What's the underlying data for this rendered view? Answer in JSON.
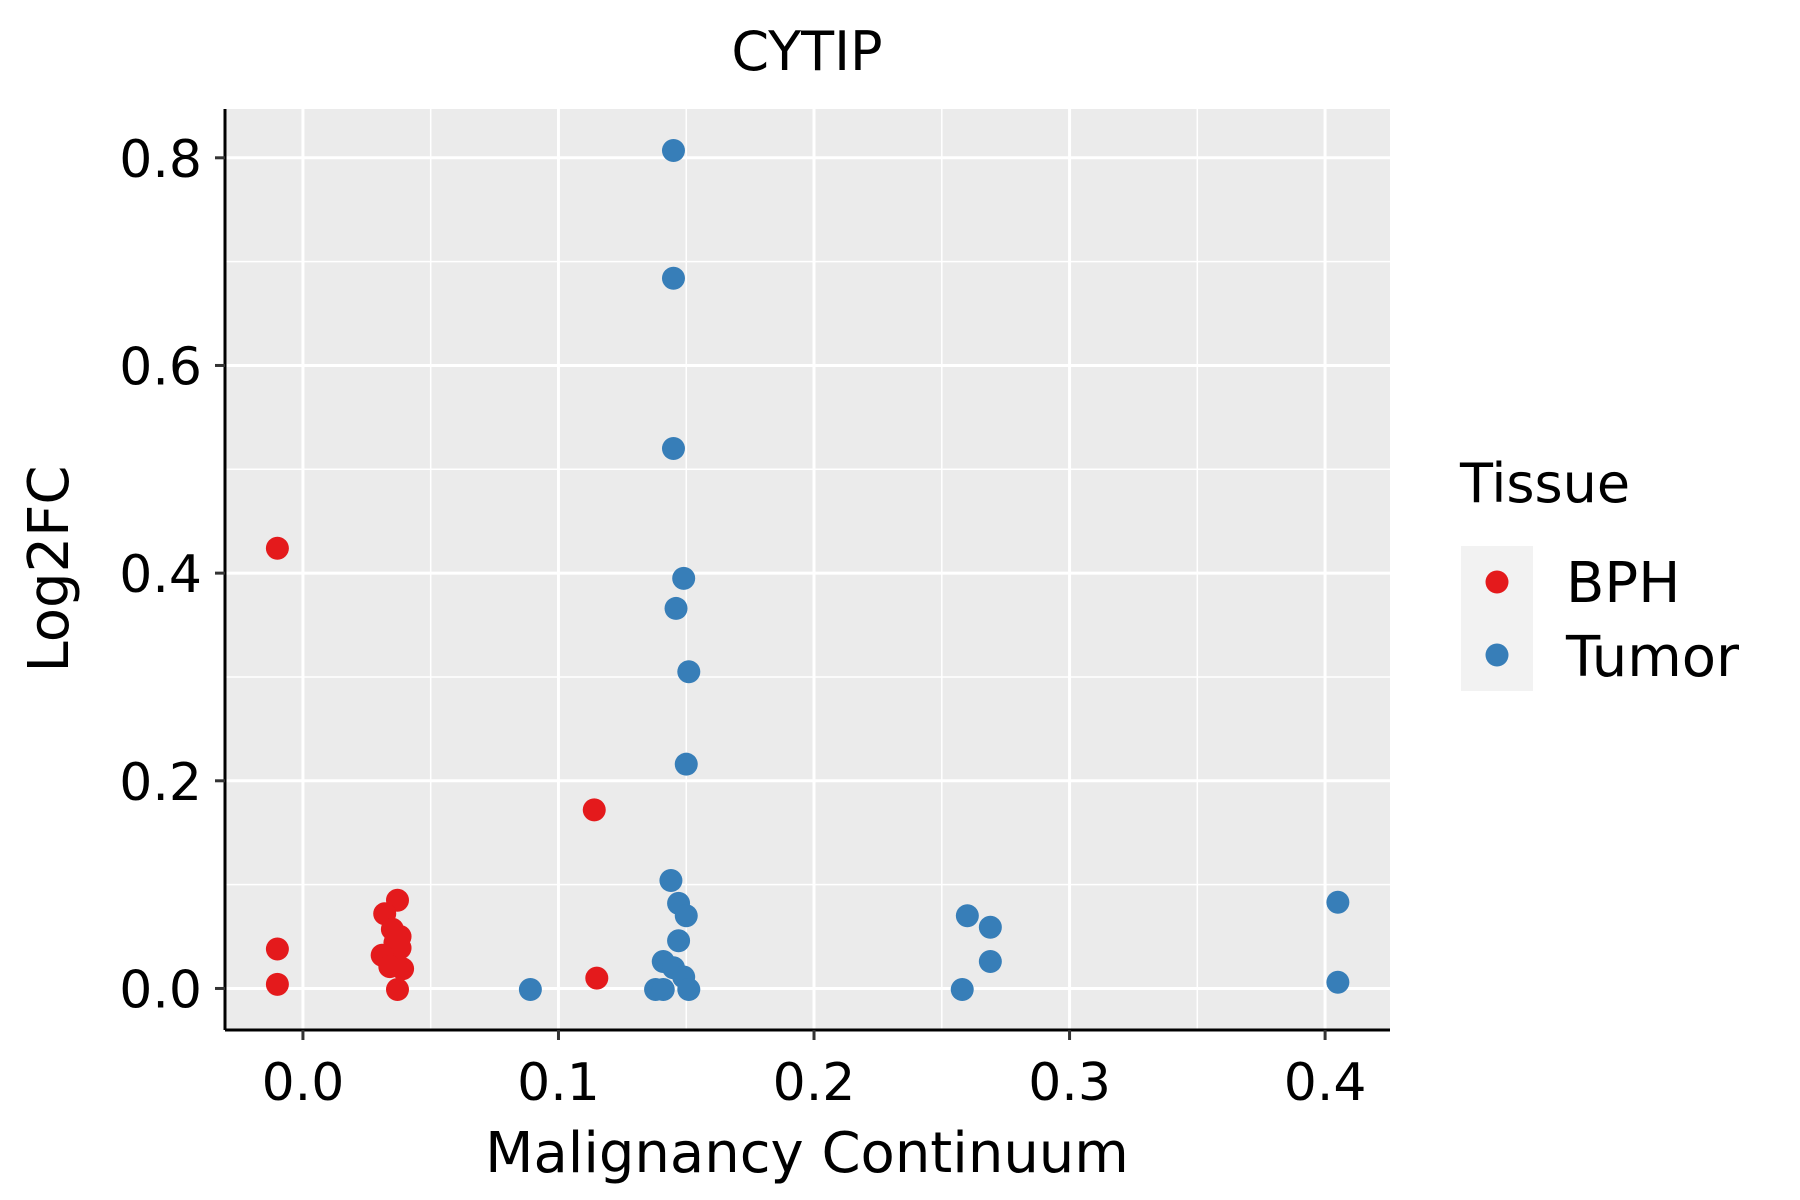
{
  "chart_data": {
    "type": "scatter",
    "title": "CYTIP",
    "xlabel": "Malignancy Continuum",
    "ylabel": "Log2FC",
    "xlim": [
      -0.0305,
      0.4254
    ],
    "ylim": [
      -0.04,
      0.847
    ],
    "xticks": [
      0.0,
      0.1,
      0.2,
      0.3,
      0.4
    ],
    "xtick_labels": [
      "0.0",
      "0.1",
      "0.2",
      "0.3",
      "0.4"
    ],
    "yticks": [
      0.0,
      0.2,
      0.4,
      0.6,
      0.8
    ],
    "ytick_labels": [
      "0.0",
      "0.2",
      "0.4",
      "0.6",
      "0.8"
    ],
    "grid": true,
    "legend": {
      "title": "Tissue",
      "placement": "right"
    },
    "series": [
      {
        "name": "BPH",
        "color": "#E41A1C",
        "points": [
          [
            -0.01,
            0.424
          ],
          [
            -0.01,
            0.038
          ],
          [
            -0.01,
            0.004
          ],
          [
            0.114,
            0.172
          ],
          [
            0.115,
            0.01
          ],
          [
            0.037,
            0.085
          ],
          [
            0.032,
            0.072
          ],
          [
            0.035,
            0.057
          ],
          [
            0.038,
            0.05
          ],
          [
            0.036,
            0.044
          ],
          [
            0.038,
            0.039
          ],
          [
            0.031,
            0.032
          ],
          [
            0.034,
            0.021
          ],
          [
            0.039,
            0.019
          ],
          [
            0.037,
            -0.001
          ]
        ]
      },
      {
        "name": "Tumor",
        "color": "#377EB8",
        "points": [
          [
            0.145,
            0.807
          ],
          [
            0.145,
            0.684
          ],
          [
            0.145,
            0.52
          ],
          [
            0.149,
            0.395
          ],
          [
            0.146,
            0.366
          ],
          [
            0.151,
            0.305
          ],
          [
            0.15,
            0.216
          ],
          [
            0.144,
            0.104
          ],
          [
            0.147,
            0.082
          ],
          [
            0.15,
            0.07
          ],
          [
            0.147,
            0.046
          ],
          [
            0.141,
            0.026
          ],
          [
            0.145,
            0.02
          ],
          [
            0.149,
            0.011
          ],
          [
            0.138,
            -0.001
          ],
          [
            0.141,
            -0.001
          ],
          [
            0.151,
            -0.001
          ],
          [
            0.089,
            -0.001
          ],
          [
            0.26,
            0.07
          ],
          [
            0.269,
            0.059
          ],
          [
            0.269,
            0.026
          ],
          [
            0.258,
            -0.001
          ],
          [
            0.405,
            0.083
          ],
          [
            0.405,
            0.006
          ]
        ]
      }
    ]
  }
}
